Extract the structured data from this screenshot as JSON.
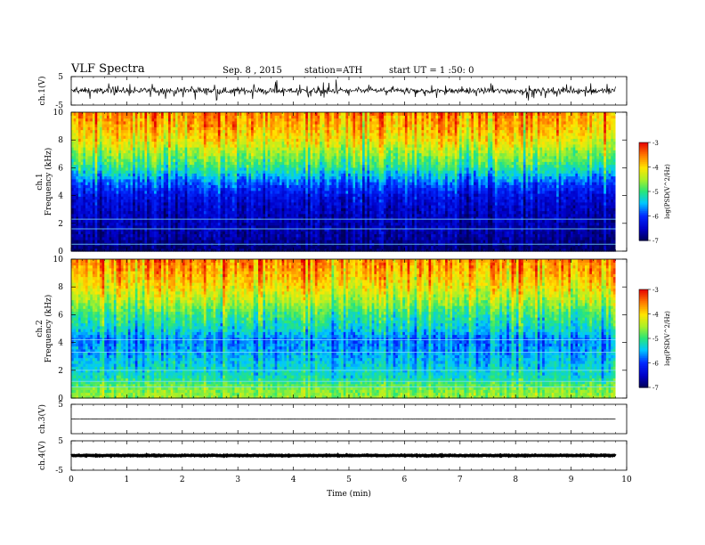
{
  "header": {
    "title": "VLF Spectra",
    "date": "Sep. 8 , 2015",
    "station": "station=ATH",
    "start": "start UT =  1 :50: 0"
  },
  "chart_data": {
    "type": "heatmap",
    "xlabel": "Time (min)",
    "xlim": [
      0,
      10
    ],
    "xticks": [
      "0",
      "1",
      "2",
      "3",
      "4",
      "5",
      "6",
      "7",
      "8",
      "9",
      "10"
    ],
    "data_end_min": 9.8,
    "panels": [
      {
        "kind": "waveform",
        "ylabel": "ch.1(V)",
        "ylim": [
          -5,
          5
        ],
        "yticks": [
          "5",
          "-5"
        ],
        "color": "#000000",
        "noise_amplitude": 0.9,
        "spike_amplitude": 3
      },
      {
        "kind": "spectrogram",
        "channel_label": "ch.1",
        "ylabel": "Frequency (kHz)",
        "ylim": [
          0,
          10
        ],
        "yticks": [
          "0",
          "2",
          "4",
          "6",
          "8",
          "10"
        ],
        "log_psd_by_frequency": [
          {
            "f": 0.25,
            "v": -6.9
          },
          {
            "f": 1,
            "v": -6.7
          },
          {
            "f": 2,
            "v": -6.6
          },
          {
            "f": 3,
            "v": -6.5
          },
          {
            "f": 4,
            "v": -6.3
          },
          {
            "f": 5,
            "v": -5.8
          },
          {
            "f": 6,
            "v": -5.1
          },
          {
            "f": 7,
            "v": -4.6
          },
          {
            "f": 8,
            "v": -4.1
          },
          {
            "f": 9,
            "v": -3.8
          },
          {
            "f": 9.9,
            "v": -3.6
          }
        ],
        "narrowband_lines_khz": [
          0.5,
          1.6,
          2.3
        ],
        "colorbar": {
          "label": "log(PSD(V^2/Hz)",
          "range": [
            -7,
            -3
          ],
          "ticks": [
            "-3",
            "-4",
            "-5",
            "-6",
            "-7"
          ]
        }
      },
      {
        "kind": "spectrogram",
        "channel_label": "ch.2",
        "ylabel": "Frequency (kHz)",
        "ylim": [
          0,
          10
        ],
        "yticks": [
          "0",
          "2",
          "4",
          "6",
          "8",
          "10"
        ],
        "log_psd_by_frequency": [
          {
            "f": 0.25,
            "v": -4.6
          },
          {
            "f": 0.8,
            "v": -4.7
          },
          {
            "f": 1.5,
            "v": -5.2
          },
          {
            "f": 2.5,
            "v": -5.4
          },
          {
            "f": 3.5,
            "v": -5.6
          },
          {
            "f": 4.3,
            "v": -5.7
          },
          {
            "f": 5,
            "v": -5.3
          },
          {
            "f": 6,
            "v": -5.0
          },
          {
            "f": 7,
            "v": -4.5
          },
          {
            "f": 8,
            "v": -4.1
          },
          {
            "f": 9,
            "v": -3.8
          },
          {
            "f": 9.9,
            "v": -3.6
          }
        ],
        "narrowband_lines_khz": [
          0.8,
          1.2,
          2.0,
          3.3,
          4.2
        ],
        "colorbar": {
          "label": "log(PSD(V^2/Hz)",
          "range": [
            -7,
            -3
          ],
          "ticks": [
            "-3",
            "-4",
            "-5",
            "-6",
            "-7"
          ]
        }
      },
      {
        "kind": "waveform",
        "ylabel": "ch.3(V)",
        "ylim": [
          -5,
          5
        ],
        "yticks": [
          "5"
        ],
        "color": "#000000",
        "offset": 0,
        "noise_amplitude": 0.05,
        "spike_amplitude": 0
      },
      {
        "kind": "waveform",
        "ylabel": "ch.4(V)",
        "ylim": [
          -5,
          5
        ],
        "yticks": [
          "5",
          "-5"
        ],
        "color": "#000000",
        "offset": 0,
        "noise_amplitude": 0.12,
        "spike_amplitude": 0
      }
    ]
  }
}
